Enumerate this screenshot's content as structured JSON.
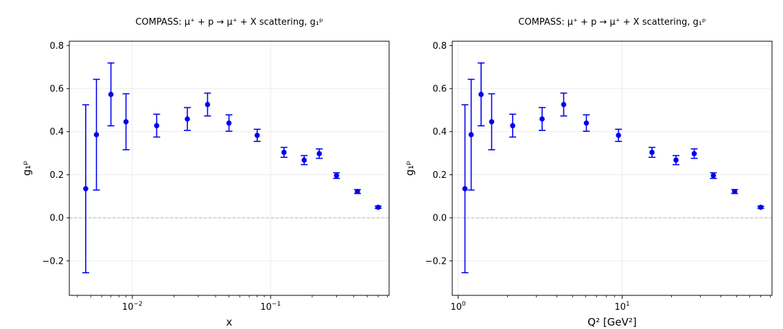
{
  "chart_data": [
    {
      "type": "scatter",
      "title": "COMPASS: μ⁺ + p → μ⁺ + X scattering, g₁ᵖ",
      "xlabel": "x",
      "ylabel": "g₁ᵖ",
      "xscale": "log",
      "xlim": [
        0.0035,
        0.72
      ],
      "ylim": [
        -0.36,
        0.82
      ],
      "y_ticks": [
        "−0.2",
        "0.0",
        "0.2",
        "0.4",
        "0.6",
        "0.8"
      ],
      "x_ticks": [
        {
          "base": "10",
          "exp": "−2"
        },
        {
          "base": "10",
          "exp": "−1"
        }
      ],
      "grid": true,
      "reference_line": {
        "y": 0.0,
        "style": "dashed",
        "color": "#b0b0b0"
      },
      "marker_color": "#0000ee",
      "points": [
        {
          "x": 0.0046,
          "y": 0.135,
          "err": 0.39
        },
        {
          "x": 0.0055,
          "y": 0.386,
          "err": 0.257
        },
        {
          "x": 0.007,
          "y": 0.573,
          "err": 0.146
        },
        {
          "x": 0.009,
          "y": 0.446,
          "err": 0.13
        },
        {
          "x": 0.015,
          "y": 0.428,
          "err": 0.053
        },
        {
          "x": 0.025,
          "y": 0.459,
          "err": 0.053
        },
        {
          "x": 0.035,
          "y": 0.526,
          "err": 0.053
        },
        {
          "x": 0.05,
          "y": 0.44,
          "err": 0.038
        },
        {
          "x": 0.08,
          "y": 0.383,
          "err": 0.028
        },
        {
          "x": 0.125,
          "y": 0.304,
          "err": 0.023
        },
        {
          "x": 0.175,
          "y": 0.268,
          "err": 0.021
        },
        {
          "x": 0.225,
          "y": 0.298,
          "err": 0.022
        },
        {
          "x": 0.3,
          "y": 0.196,
          "err": 0.013
        },
        {
          "x": 0.425,
          "y": 0.122,
          "err": 0.009
        },
        {
          "x": 0.6,
          "y": 0.049,
          "err": 0.005
        }
      ]
    },
    {
      "type": "scatter",
      "title": "COMPASS: μ⁺ + p → μ⁺ + X scattering, g₁ᵖ",
      "xlabel": "Q² [GeV²]",
      "ylabel": "g₁ᵖ",
      "xscale": "log",
      "xlim": [
        0.92,
        82
      ],
      "ylim": [
        -0.36,
        0.82
      ],
      "y_ticks": [
        "−0.2",
        "0.0",
        "0.2",
        "0.4",
        "0.6",
        "0.8"
      ],
      "x_ticks": [
        {
          "base": "10",
          "exp": "0"
        },
        {
          "base": "10",
          "exp": "1"
        }
      ],
      "grid": true,
      "reference_line": {
        "y": 0.0,
        "style": "dashed",
        "color": "#b0b0b0"
      },
      "marker_color": "#0000ee",
      "points": [
        {
          "x": 1.1,
          "y": 0.135,
          "err": 0.39
        },
        {
          "x": 1.2,
          "y": 0.386,
          "err": 0.257
        },
        {
          "x": 1.38,
          "y": 0.573,
          "err": 0.146
        },
        {
          "x": 1.6,
          "y": 0.446,
          "err": 0.13
        },
        {
          "x": 2.15,
          "y": 0.428,
          "err": 0.053
        },
        {
          "x": 3.25,
          "y": 0.459,
          "err": 0.053
        },
        {
          "x": 4.4,
          "y": 0.526,
          "err": 0.053
        },
        {
          "x": 6.05,
          "y": 0.44,
          "err": 0.038
        },
        {
          "x": 9.5,
          "y": 0.383,
          "err": 0.028
        },
        {
          "x": 15.2,
          "y": 0.304,
          "err": 0.023
        },
        {
          "x": 21.3,
          "y": 0.268,
          "err": 0.021
        },
        {
          "x": 27.5,
          "y": 0.298,
          "err": 0.022
        },
        {
          "x": 36.0,
          "y": 0.196,
          "err": 0.013
        },
        {
          "x": 48.5,
          "y": 0.122,
          "err": 0.009
        },
        {
          "x": 70.0,
          "y": 0.049,
          "err": 0.005
        }
      ]
    }
  ]
}
